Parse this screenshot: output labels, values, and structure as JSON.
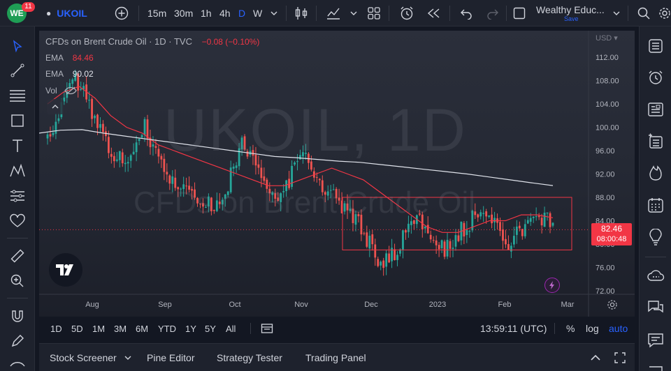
{
  "topbar": {
    "badge_count": "11",
    "symbol": "UKOIL",
    "intervals": [
      "15m",
      "30m",
      "1h",
      "4h",
      "D",
      "W"
    ],
    "active_interval": "D",
    "layout_name": "Wealthy Educ...",
    "save_label": "Save"
  },
  "chart": {
    "title": "CFDs on Brent Crude Oil · 1D · TVC",
    "change": "−0.08 (−0.10%)",
    "ema1_label": "EMA",
    "ema1_value": "84.46",
    "ema2_label": "EMA",
    "ema2_value": "90.02",
    "vol_label": "Vol",
    "watermark_symbol": "UKOIL, 1D",
    "watermark_name": "CFDs on Brent Crude Oil",
    "currency": "USD",
    "price_ticks": [
      "112.00",
      "108.00",
      "104.00",
      "100.00",
      "96.00",
      "92.00",
      "88.00",
      "84.00",
      "80.00",
      "76.00",
      "72.00"
    ],
    "time_ticks": [
      "Aug",
      "Sep",
      "Oct",
      "Nov",
      "Dec",
      "2023",
      "Feb",
      "Mar"
    ],
    "last_price": "82.46",
    "countdown": "08:00:48",
    "colors": {
      "up": "#26a69a",
      "down": "#ef5350",
      "ema_red": "#f23645",
      "ema_white": "#e0e3eb",
      "box": "#f23645"
    }
  },
  "chart_data": {
    "type": "candlestick",
    "y_range": [
      72,
      114
    ],
    "candles_note": "approximate daily Brent path Jul 2022 – Mar 2023",
    "ema_fast": [
      104,
      106,
      107,
      105,
      102,
      100,
      99,
      97,
      96,
      95,
      94,
      93,
      92,
      91,
      90,
      90,
      91,
      92,
      93,
      92,
      91,
      89,
      87,
      85,
      83,
      82,
      82,
      83,
      84,
      84,
      85,
      85,
      84.5
    ],
    "ema_slow": [
      99,
      99.5,
      99.6,
      99,
      98.5,
      98,
      97.5,
      97,
      96.5,
      96,
      95.5,
      95,
      94.8,
      94.5,
      94.2,
      94,
      93.6,
      93.2,
      92.8,
      92.4,
      92,
      91.5,
      91,
      90.5,
      90.02
    ]
  },
  "bottombar": {
    "ranges": [
      "1D",
      "5D",
      "1M",
      "3M",
      "6M",
      "YTD",
      "1Y",
      "5Y",
      "All"
    ],
    "clock": "13:59:11 (UTC)",
    "percent": "%",
    "log": "log",
    "auto": "auto"
  },
  "panel": {
    "tabs": [
      "Stock Screener",
      "Pine Editor",
      "Strategy Tester",
      "Trading Panel"
    ]
  }
}
